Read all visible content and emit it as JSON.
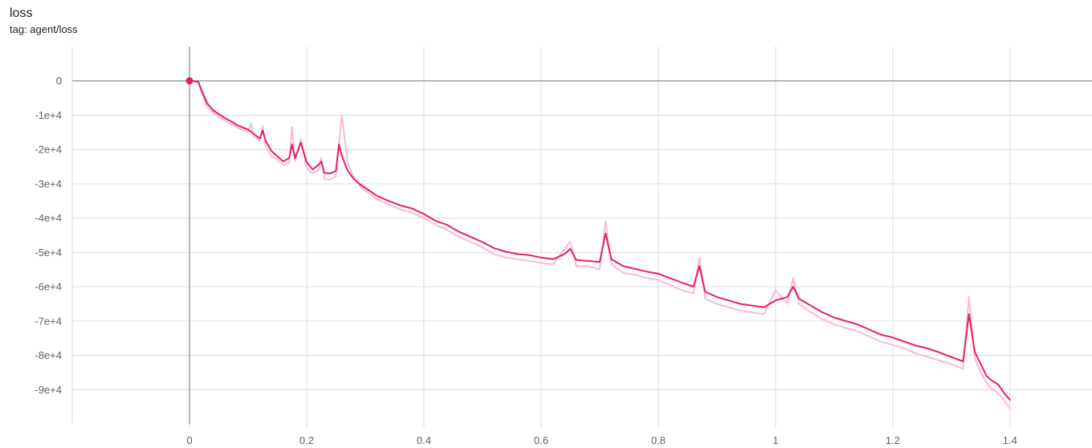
{
  "title": "loss",
  "subtitle": "tag: agent/loss",
  "colors": {
    "line": "#e91e63",
    "line_raw": "#f8bbd0",
    "grid": "#dddddd",
    "zero_axis": "#9e9e9e",
    "text": "#212121",
    "tick": "#616161"
  },
  "chart_data": {
    "type": "line",
    "title": "loss",
    "subtitle": "tag: agent/loss",
    "xlabel": "",
    "ylabel": "",
    "xlim": [
      -0.2,
      1.54
    ],
    "ylim": [
      -100000,
      10000
    ],
    "x_ticks": [
      0,
      0.2,
      0.4,
      0.6,
      0.8,
      1,
      1.2,
      1.4
    ],
    "x_tick_labels": [
      "0",
      "0.2",
      "0.4",
      "0.6",
      "0.8",
      "1",
      "1.2",
      "1.4"
    ],
    "y_ticks": [
      0,
      -10000,
      -20000,
      -30000,
      -40000,
      -50000,
      -60000,
      -70000,
      -80000,
      -90000
    ],
    "y_tick_labels": [
      "0",
      "-1e+4",
      "-2e+4",
      "-3e+4",
      "-4e+4",
      "-5e+4",
      "-6e+4",
      "-7e+4",
      "-8e+4",
      "-9e+4"
    ],
    "grid": true,
    "legend": "none",
    "series": [
      {
        "style": "smoothed",
        "x": [
          0,
          0.015,
          0.02,
          0.03,
          0.04,
          0.05,
          0.06,
          0.07,
          0.08,
          0.09,
          0.1,
          0.11,
          0.12,
          0.125,
          0.13,
          0.14,
          0.15,
          0.16,
          0.17,
          0.175,
          0.18,
          0.19,
          0.2,
          0.21,
          0.22,
          0.225,
          0.23,
          0.24,
          0.25,
          0.255,
          0.26,
          0.27,
          0.28,
          0.29,
          0.3,
          0.32,
          0.34,
          0.36,
          0.38,
          0.4,
          0.42,
          0.44,
          0.46,
          0.48,
          0.5,
          0.52,
          0.54,
          0.56,
          0.58,
          0.6,
          0.62,
          0.64,
          0.65,
          0.66,
          0.68,
          0.7,
          0.71,
          0.72,
          0.74,
          0.76,
          0.78,
          0.8,
          0.82,
          0.84,
          0.86,
          0.87,
          0.88,
          0.9,
          0.92,
          0.94,
          0.96,
          0.98,
          1.0,
          1.02,
          1.03,
          1.04,
          1.06,
          1.08,
          1.1,
          1.12,
          1.14,
          1.16,
          1.18,
          1.2,
          1.22,
          1.24,
          1.26,
          1.28,
          1.3,
          1.32,
          1.33,
          1.34,
          1.35,
          1.36,
          1.37,
          1.38,
          1.39,
          1.4
        ],
        "y": [
          0,
          -200,
          -2500,
          -6500,
          -8500,
          -9700,
          -10800,
          -11700,
          -12800,
          -13500,
          -14200,
          -15500,
          -16800,
          -14500,
          -17500,
          -20500,
          -22000,
          -23500,
          -22500,
          -18500,
          -22500,
          -18000,
          -23800,
          -25800,
          -24500,
          -23500,
          -26800,
          -27000,
          -26200,
          -18500,
          -21800,
          -26200,
          -28500,
          -30000,
          -31200,
          -33500,
          -35000,
          -36300,
          -37200,
          -38800,
          -40800,
          -42000,
          -44000,
          -45500,
          -47000,
          -48800,
          -49800,
          -50500,
          -50800,
          -51500,
          -52000,
          -50500,
          -49000,
          -52200,
          -52500,
          -52800,
          -44500,
          -52000,
          -54000,
          -54800,
          -55600,
          -56200,
          -57500,
          -58800,
          -60000,
          -54000,
          -61500,
          -63000,
          -64000,
          -65000,
          -65500,
          -66000,
          -64000,
          -63000,
          -60000,
          -63500,
          -65500,
          -67500,
          -69000,
          -70000,
          -71000,
          -72500,
          -74000,
          -74800,
          -76000,
          -77200,
          -78000,
          -79200,
          -80500,
          -81800,
          -68000,
          -79000,
          -82500,
          -86000,
          -87500,
          -88500,
          -91000,
          -93000
        ]
      },
      {
        "style": "raw",
        "x": [
          0,
          0.015,
          0.02,
          0.03,
          0.04,
          0.05,
          0.06,
          0.07,
          0.08,
          0.09,
          0.1,
          0.105,
          0.11,
          0.12,
          0.125,
          0.13,
          0.14,
          0.15,
          0.16,
          0.17,
          0.175,
          0.18,
          0.19,
          0.2,
          0.21,
          0.22,
          0.225,
          0.23,
          0.24,
          0.25,
          0.26,
          0.27,
          0.28,
          0.29,
          0.3,
          0.32,
          0.34,
          0.36,
          0.38,
          0.4,
          0.42,
          0.44,
          0.46,
          0.48,
          0.5,
          0.52,
          0.54,
          0.56,
          0.58,
          0.6,
          0.62,
          0.64,
          0.65,
          0.66,
          0.68,
          0.7,
          0.71,
          0.72,
          0.74,
          0.76,
          0.78,
          0.8,
          0.82,
          0.84,
          0.86,
          0.87,
          0.88,
          0.9,
          0.92,
          0.94,
          0.96,
          0.98,
          1.0,
          1.02,
          1.03,
          1.04,
          1.06,
          1.08,
          1.1,
          1.12,
          1.14,
          1.16,
          1.18,
          1.2,
          1.22,
          1.24,
          1.26,
          1.28,
          1.3,
          1.32,
          1.33,
          1.34,
          1.35,
          1.36,
          1.37,
          1.38,
          1.39,
          1.4
        ],
        "y": [
          0,
          -300,
          -3200,
          -7500,
          -9200,
          -10500,
          -11500,
          -12500,
          -13500,
          -14200,
          -15000,
          -12500,
          -16200,
          -17500,
          -13200,
          -19000,
          -22000,
          -23000,
          -24500,
          -24000,
          -13500,
          -23500,
          -17000,
          -25500,
          -27000,
          -26000,
          -22500,
          -28500,
          -28800,
          -27800,
          -10000,
          -24000,
          -28000,
          -30500,
          -32000,
          -34500,
          -36000,
          -37500,
          -38500,
          -40000,
          -42000,
          -43500,
          -45500,
          -47000,
          -48500,
          -50500,
          -51500,
          -52000,
          -52500,
          -53000,
          -53500,
          -49000,
          -47000,
          -54000,
          -54000,
          -55000,
          -41000,
          -53500,
          -56000,
          -56500,
          -57500,
          -58000,
          -59500,
          -61000,
          -62000,
          -51500,
          -63500,
          -65000,
          -66000,
          -67000,
          -67500,
          -68000,
          -61000,
          -65000,
          -57500,
          -65000,
          -67500,
          -69500,
          -71000,
          -72000,
          -73000,
          -74500,
          -76000,
          -77000,
          -78000,
          -79500,
          -80500,
          -81500,
          -82500,
          -84000,
          -63000,
          -81000,
          -85000,
          -88000,
          -90000,
          -91000,
          -93000,
          -95500
        ]
      }
    ]
  }
}
